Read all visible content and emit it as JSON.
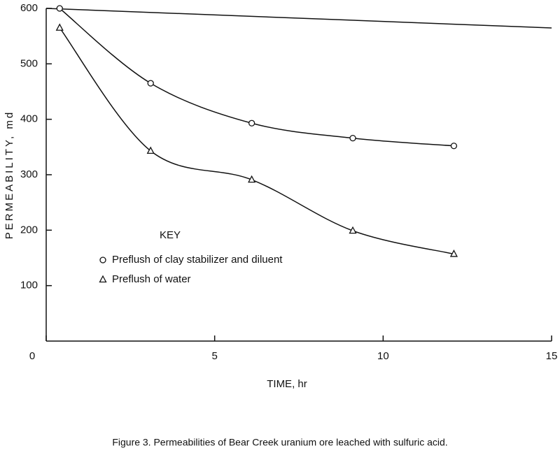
{
  "chart_data": {
    "type": "line",
    "caption": "Figure 3.  Permeabilities of Bear Creek uranium ore leached with sulfuric acid.",
    "x_label": "TIME, hr",
    "y_label": "PERMEABILITY, md",
    "legend_title": "KEY",
    "x": [
      0.4,
      3.1,
      6.1,
      9.1,
      12.1
    ],
    "series": [
      {
        "name": "Preflush of clay stabilizer and diluent",
        "marker": "circle",
        "color": "#111111",
        "values": [
          600,
          465,
          393,
          366,
          352
        ]
      },
      {
        "name": "Preflush of water",
        "marker": "triangle",
        "color": "#111111",
        "values": [
          565,
          343,
          291,
          199,
          157
        ]
      }
    ],
    "xlim": [
      0,
      15
    ],
    "xticks": [
      0,
      5,
      10,
      15
    ],
    "ylim": [
      0,
      600
    ],
    "yticks": [
      100,
      200,
      300,
      400,
      500,
      600
    ]
  }
}
